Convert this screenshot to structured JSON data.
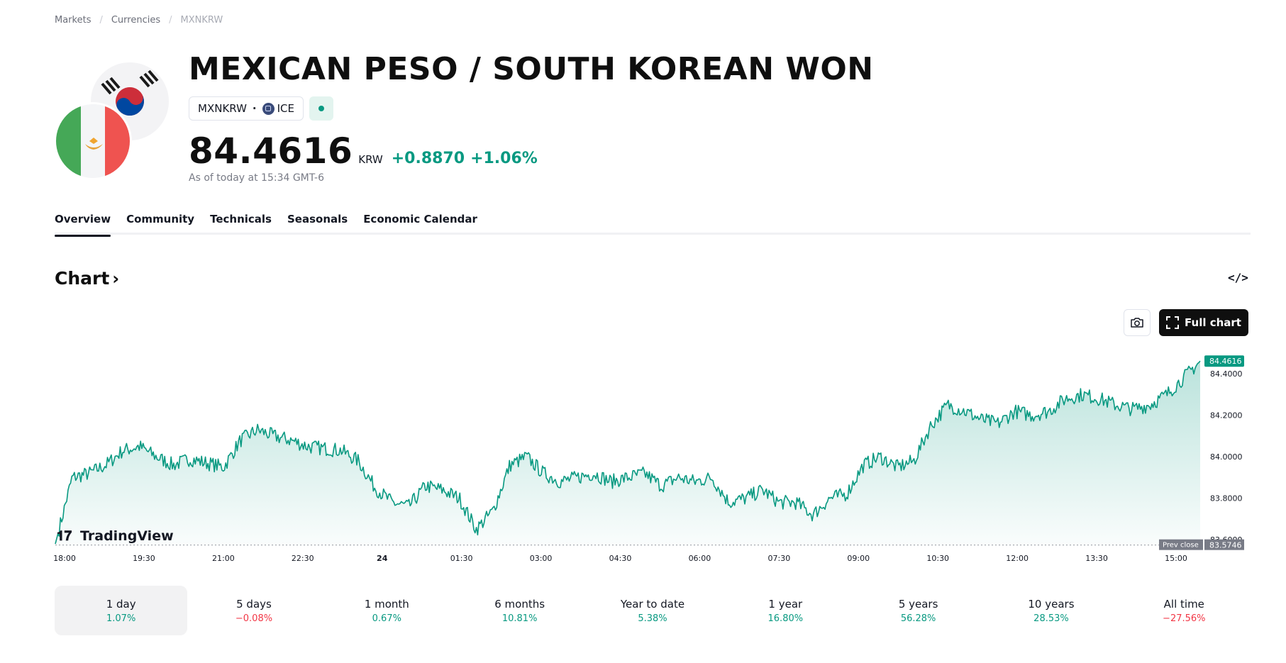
{
  "breadcrumb": {
    "items": [
      "Markets",
      "Currencies"
    ],
    "current": "MXNKRW"
  },
  "header": {
    "title": "MEXICAN PESO / SOUTH KOREAN WON",
    "symbol": "MXNKRW",
    "exchange": "ICE",
    "price": "84.4616",
    "currency": "KRW",
    "change": "+0.8870",
    "change_pct": "+1.06%",
    "as_of": "As of today at 15:34 GMT-6"
  },
  "tabs": [
    {
      "label": "Overview",
      "active": true
    },
    {
      "label": "Community"
    },
    {
      "label": "Technicals"
    },
    {
      "label": "Seasonals"
    },
    {
      "label": "Economic Calendar"
    }
  ],
  "chart_section": {
    "heading": "Chart",
    "full_chart_label": "Full chart",
    "watermark": "TradingView"
  },
  "chart_data": {
    "type": "area",
    "x_ticks": [
      "18:00",
      "19:30",
      "21:00",
      "22:30",
      "24",
      "01:30",
      "03:00",
      "04:30",
      "06:00",
      "07:30",
      "09:00",
      "10:30",
      "12:00",
      "13:30",
      "15:00"
    ],
    "y_ticks": [
      "83.6000",
      "83.8000",
      "84.0000",
      "84.2000",
      "84.4000"
    ],
    "ylim": [
      83.57,
      84.5
    ],
    "last_value": "84.4616",
    "prev_close": {
      "label": "Prev close",
      "value": "83.5746"
    },
    "line_color": "#089981",
    "series": [
      {
        "values": [
          83.58,
          83.9,
          83.92,
          83.96,
          84.03,
          84.05,
          84.0,
          83.96,
          83.99,
          83.97,
          83.95,
          84.08,
          84.13,
          84.1,
          84.08,
          84.05,
          84.04,
          84.03,
          83.98,
          83.85,
          83.78,
          83.76,
          83.86,
          83.84,
          83.8,
          83.65,
          83.74,
          83.96,
          84.0,
          83.92,
          83.88,
          83.9,
          83.92,
          83.88,
          83.9,
          83.92,
          83.86,
          83.9,
          83.88,
          83.9,
          83.78,
          83.8,
          83.84,
          83.78,
          83.78,
          83.72,
          83.8,
          83.82,
          83.96,
          84.0,
          83.95,
          83.98,
          84.15,
          84.25,
          84.22,
          84.18,
          84.16,
          84.22,
          84.2,
          84.22,
          84.28,
          84.3,
          84.28,
          84.25,
          84.23,
          84.25,
          84.3,
          84.38,
          84.46
        ]
      }
    ]
  },
  "periods": [
    {
      "label": "1 day",
      "value": "1.07%",
      "dir": "up",
      "active": true
    },
    {
      "label": "5 days",
      "value": "−0.08%",
      "dir": "down"
    },
    {
      "label": "1 month",
      "value": "0.67%",
      "dir": "up"
    },
    {
      "label": "6 months",
      "value": "10.81%",
      "dir": "up"
    },
    {
      "label": "Year to date",
      "value": "5.38%",
      "dir": "up"
    },
    {
      "label": "1 year",
      "value": "16.80%",
      "dir": "up"
    },
    {
      "label": "5 years",
      "value": "56.28%",
      "dir": "up"
    },
    {
      "label": "10 years",
      "value": "28.53%",
      "dir": "up"
    },
    {
      "label": "All time",
      "value": "−27.56%",
      "dir": "down"
    }
  ]
}
